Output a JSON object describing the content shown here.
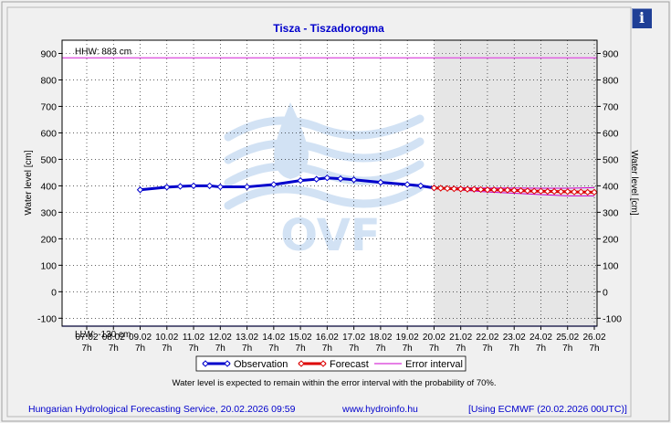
{
  "info_button": {
    "label": "i",
    "icon": "info-icon"
  },
  "colors": {
    "observation": "#0000cc",
    "forecast": "#dd0000",
    "error_interval": "#cc00cc",
    "hhw_line": "#e060e0",
    "llw_line": "#8080ff",
    "title": "#0000cc",
    "footer_text": "#0000cc",
    "forecast_band": "#e6e6e6",
    "watermark": "#9cc0e8"
  },
  "footer": {
    "service": "Hungarian Hydrological Forecasting Service, 20.02.2026 09:59",
    "website": "www.hydroinfo.hu",
    "model": "[Using ECMWF (20.02.2026  00UTC)]"
  },
  "note": "Water level is expected to remain within the error interval with the probability of 70%.",
  "watermark_text": "OVF",
  "chart_data": {
    "type": "line",
    "title": "Tisza - Tiszadorogma",
    "ylabel": "Water level [cm]",
    "ylabel_right": "Water level [cm]",
    "ylim": [
      -130,
      950
    ],
    "yticks": [
      -100,
      0,
      100,
      200,
      300,
      400,
      500,
      600,
      700,
      800,
      900
    ],
    "xlim": [
      0,
      19
    ],
    "xticks": [
      {
        "x": 0,
        "date": "07.02",
        "hour": "7h"
      },
      {
        "x": 1,
        "date": "08.02",
        "hour": "7h"
      },
      {
        "x": 2,
        "date": "09.02",
        "hour": "7h"
      },
      {
        "x": 3,
        "date": "10.02",
        "hour": "7h"
      },
      {
        "x": 4,
        "date": "11.02",
        "hour": "7h"
      },
      {
        "x": 5,
        "date": "12.02",
        "hour": "7h"
      },
      {
        "x": 6,
        "date": "13.02",
        "hour": "7h"
      },
      {
        "x": 7,
        "date": "14.02",
        "hour": "7h"
      },
      {
        "x": 8,
        "date": "15.02",
        "hour": "7h"
      },
      {
        "x": 9,
        "date": "16.02",
        "hour": "7h"
      },
      {
        "x": 10,
        "date": "17.02",
        "hour": "7h"
      },
      {
        "x": 11,
        "date": "18.02",
        "hour": "7h"
      },
      {
        "x": 12,
        "date": "19.02",
        "hour": "7h"
      },
      {
        "x": 13,
        "date": "20.02",
        "hour": "7h"
      },
      {
        "x": 14,
        "date": "21.02",
        "hour": "7h"
      },
      {
        "x": 15,
        "date": "22.02",
        "hour": "7h"
      },
      {
        "x": 16,
        "date": "23.02",
        "hour": "7h"
      },
      {
        "x": 17,
        "date": "24.02",
        "hour": "7h"
      },
      {
        "x": 18,
        "date": "25.02",
        "hour": "7h"
      },
      {
        "x": 19,
        "date": "26.02",
        "hour": "7h"
      }
    ],
    "forecast_start": 13,
    "hhw": {
      "label": "HHW: 883 cm",
      "value": 883
    },
    "llw": {
      "label": "LLW: -130 cm",
      "value": -130
    },
    "grid": true,
    "legend_position": "bottom",
    "legend": [
      {
        "name": "Observation",
        "key": "observation"
      },
      {
        "name": "Forecast",
        "key": "forecast"
      },
      {
        "name": "Error interval",
        "key": "error_interval"
      }
    ],
    "series": [
      {
        "name": "Observation",
        "key": "observation",
        "x": [
          2.0,
          3.0,
          3.5,
          4.0,
          4.6,
          5.0,
          6.0,
          7.0,
          8.0,
          8.6,
          9.0,
          9.5,
          10.0,
          11.0,
          12.0,
          12.5,
          13.0
        ],
        "values": [
          385,
          395,
          398,
          400,
          400,
          396,
          396,
          405,
          420,
          425,
          430,
          427,
          423,
          413,
          405,
          400,
          392
        ]
      },
      {
        "name": "Forecast",
        "key": "forecast",
        "x": [
          13.0,
          13.25,
          13.5,
          13.75,
          14.0,
          14.25,
          14.5,
          14.75,
          15.0,
          15.25,
          15.5,
          15.75,
          16.0,
          16.25,
          16.5,
          16.75,
          17.0,
          17.25,
          17.5,
          17.75,
          18.0,
          18.25,
          18.5,
          18.75,
          19.0
        ],
        "values": [
          392,
          391,
          390,
          389,
          388,
          387,
          387,
          386,
          385,
          385,
          384,
          384,
          383,
          382,
          381,
          380,
          380,
          379,
          379,
          378,
          378,
          377,
          377,
          376,
          376
        ]
      }
    ],
    "error_interval": {
      "x": [
        13.0,
        14.0,
        15.0,
        16.0,
        17.0,
        18.0,
        19.0
      ],
      "upper": [
        394,
        393,
        392,
        392,
        391,
        391,
        393
      ],
      "lower": [
        390,
        384,
        377,
        372,
        367,
        362,
        362
      ]
    }
  }
}
